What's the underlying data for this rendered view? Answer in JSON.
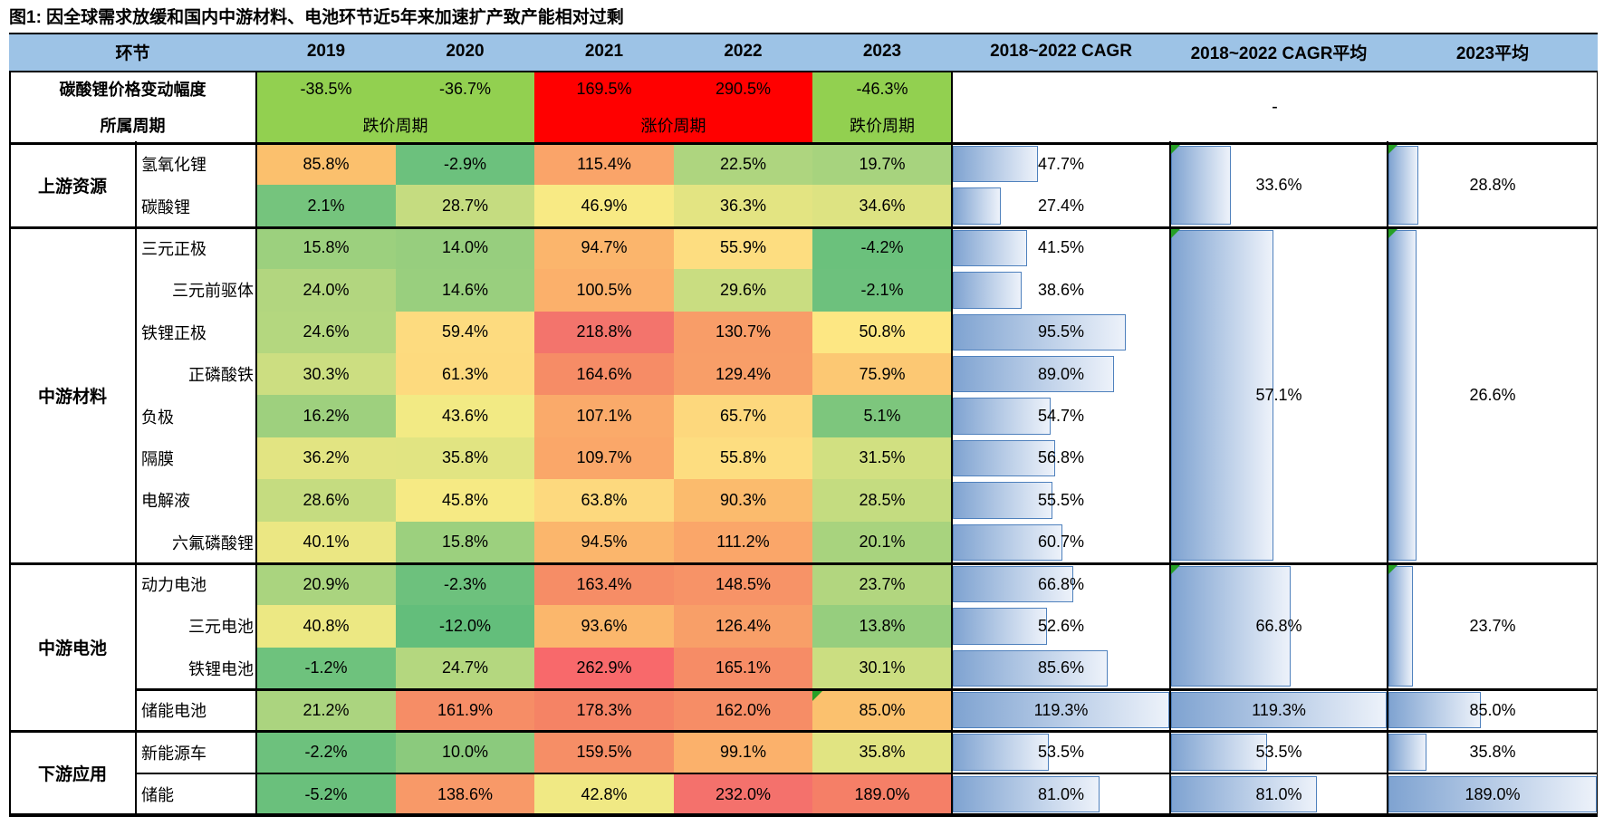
{
  "title": "图1: 因全球需求放缓和国内中游材料、电池环节近5年来加速扩产致产能相对过剩",
  "header": {
    "segment_col": "环节",
    "years": [
      "2019",
      "2020",
      "2021",
      "2022",
      "2023"
    ],
    "cagr": "2018~2022 CAGR",
    "cagr_avg": "2018~2022 CAGR平均",
    "avg_2023": "2023平均"
  },
  "price_row": {
    "label": "碳酸锂价格变动幅度",
    "values": [
      "-38.5%",
      "-36.7%",
      "169.5%",
      "290.5%",
      "-46.3%"
    ],
    "colors": [
      "#92D050",
      "#92D050",
      "#FF0000",
      "#FF0000",
      "#92D050"
    ]
  },
  "cycle_row": {
    "label": "所属周期",
    "segments": [
      {
        "text": "跌价周期",
        "span": 2,
        "color": "#92D050"
      },
      {
        "text": "涨价周期",
        "span": 2,
        "color": "#FF0000"
      },
      {
        "text": "跌价周期",
        "span": 1,
        "color": "#92D050"
      }
    ]
  },
  "dash_cell": "-",
  "sections": [
    {
      "label": "上游资源",
      "row_start": 0,
      "row_count": 2
    },
    {
      "label": "中游材料",
      "row_start": 2,
      "row_count": 8
    },
    {
      "label": "中游电池",
      "row_start": 10,
      "row_count": 4
    },
    {
      "label": "下游应用",
      "row_start": 14,
      "row_count": 2
    }
  ],
  "chart_data": {
    "type": "heatmap-table",
    "columns": [
      "2019",
      "2020",
      "2021",
      "2022",
      "2023",
      "2018~2022 CAGR"
    ],
    "rows": [
      {
        "name": "氢氧化锂",
        "indent": false,
        "values": [
          85.8,
          -2.9,
          115.4,
          22.5,
          19.7
        ],
        "cagr": 47.7,
        "marker2023": false
      },
      {
        "name": "碳酸锂",
        "indent": false,
        "values": [
          2.1,
          28.7,
          46.9,
          36.3,
          34.6
        ],
        "cagr": 27.4,
        "marker2023": false
      },
      {
        "name": "三元正极",
        "indent": false,
        "values": [
          15.8,
          14.0,
          94.7,
          55.9,
          -4.2
        ],
        "cagr": 41.5,
        "marker2023": false
      },
      {
        "name": "三元前驱体",
        "indent": true,
        "values": [
          24.0,
          14.6,
          100.5,
          29.6,
          -2.1
        ],
        "cagr": 38.6,
        "marker2023": false
      },
      {
        "name": "铁锂正极",
        "indent": false,
        "values": [
          24.6,
          59.4,
          218.8,
          130.7,
          50.8
        ],
        "cagr": 95.5,
        "marker2023": false
      },
      {
        "name": "正磷酸铁",
        "indent": true,
        "values": [
          30.3,
          61.3,
          164.6,
          129.4,
          75.9
        ],
        "cagr": 89.0,
        "marker2023": false
      },
      {
        "name": "负极",
        "indent": false,
        "values": [
          16.2,
          43.6,
          107.1,
          65.7,
          5.1
        ],
        "cagr": 54.7,
        "marker2023": false
      },
      {
        "name": "隔膜",
        "indent": false,
        "values": [
          36.2,
          35.8,
          109.7,
          55.8,
          31.5
        ],
        "cagr": 56.8,
        "marker2023": false
      },
      {
        "name": "电解液",
        "indent": false,
        "values": [
          28.6,
          45.8,
          63.8,
          90.3,
          28.5
        ],
        "cagr": 55.5,
        "marker2023": false
      },
      {
        "name": "六氟磷酸锂",
        "indent": true,
        "values": [
          40.1,
          15.8,
          94.5,
          111.2,
          20.1
        ],
        "cagr": 60.7,
        "marker2023": false
      },
      {
        "name": "动力电池",
        "indent": false,
        "values": [
          20.9,
          -2.3,
          163.4,
          148.5,
          23.7
        ],
        "cagr": 66.8,
        "marker2023": false
      },
      {
        "name": "三元电池",
        "indent": true,
        "values": [
          40.8,
          -12.0,
          93.6,
          126.4,
          13.8
        ],
        "cagr": 52.6,
        "marker2023": false
      },
      {
        "name": "铁锂电池",
        "indent": true,
        "values": [
          -1.2,
          24.7,
          262.9,
          165.1,
          30.1
        ],
        "cagr": 85.6,
        "marker2023": false
      },
      {
        "name": "储能电池",
        "indent": false,
        "values": [
          21.2,
          161.9,
          178.3,
          162.0,
          85.0
        ],
        "cagr": 119.3,
        "marker2023": true
      },
      {
        "name": "新能源车",
        "indent": false,
        "values": [
          -2.2,
          10.0,
          159.5,
          99.1,
          35.8
        ],
        "cagr": 53.5,
        "marker2023": false
      },
      {
        "name": "储能",
        "indent": false,
        "values": [
          -5.2,
          138.6,
          42.8,
          232.0,
          189.0
        ],
        "cagr": 81.0,
        "marker2023": false
      }
    ],
    "groups": [
      {
        "row_start": 0,
        "row_count": 2,
        "cagr_avg": 33.6,
        "avg_2023": 28.8,
        "marker": true
      },
      {
        "row_start": 2,
        "row_count": 8,
        "cagr_avg": 57.1,
        "avg_2023": 26.6,
        "marker": true
      },
      {
        "row_start": 10,
        "row_count": 3,
        "cagr_avg": 66.8,
        "avg_2023": 23.7,
        "marker": true
      },
      {
        "row_start": 13,
        "row_count": 1,
        "cagr_avg": 119.3,
        "avg_2023": 85.0,
        "marker": false
      },
      {
        "row_start": 14,
        "row_count": 1,
        "cagr_avg": 53.5,
        "avg_2023": 35.8,
        "marker": false
      },
      {
        "row_start": 15,
        "row_count": 1,
        "cagr_avg": 81.0,
        "avg_2023": 189.0,
        "marker": false
      }
    ],
    "bar_scale": {
      "cagr_max": 119.3,
      "cagr_avg_max": 119.3,
      "avg_2023_max": 189.0
    }
  },
  "heat_scale": [
    [
      -12,
      "#63BE7B"
    ],
    [
      0,
      "#6FC27D"
    ],
    [
      10,
      "#8BCA7D"
    ],
    [
      16,
      "#9DD07E"
    ],
    [
      25,
      "#B5D77F"
    ],
    [
      31,
      "#CFDF81"
    ],
    [
      36,
      "#E2E482"
    ],
    [
      44,
      "#F3EA84"
    ],
    [
      50,
      "#FDE983"
    ],
    [
      56,
      "#FDDD80"
    ],
    [
      66,
      "#FDD87D"
    ],
    [
      76,
      "#FCC873"
    ],
    [
      86,
      "#FBC06D"
    ],
    [
      95,
      "#FBB56C"
    ],
    [
      111,
      "#FAA669"
    ],
    [
      131,
      "#F89D68"
    ],
    [
      150,
      "#F79267"
    ],
    [
      165,
      "#F68C66"
    ],
    [
      180,
      "#F58265"
    ],
    [
      219,
      "#F3746C"
    ],
    [
      263,
      "#F8696B"
    ]
  ],
  "colors": {
    "header_bg": "#9DC3E6",
    "cycle_green": "#92D050",
    "cycle_red": "#FF0000",
    "bar_border": "#4F81BD",
    "comment_marker": "#26A026"
  }
}
